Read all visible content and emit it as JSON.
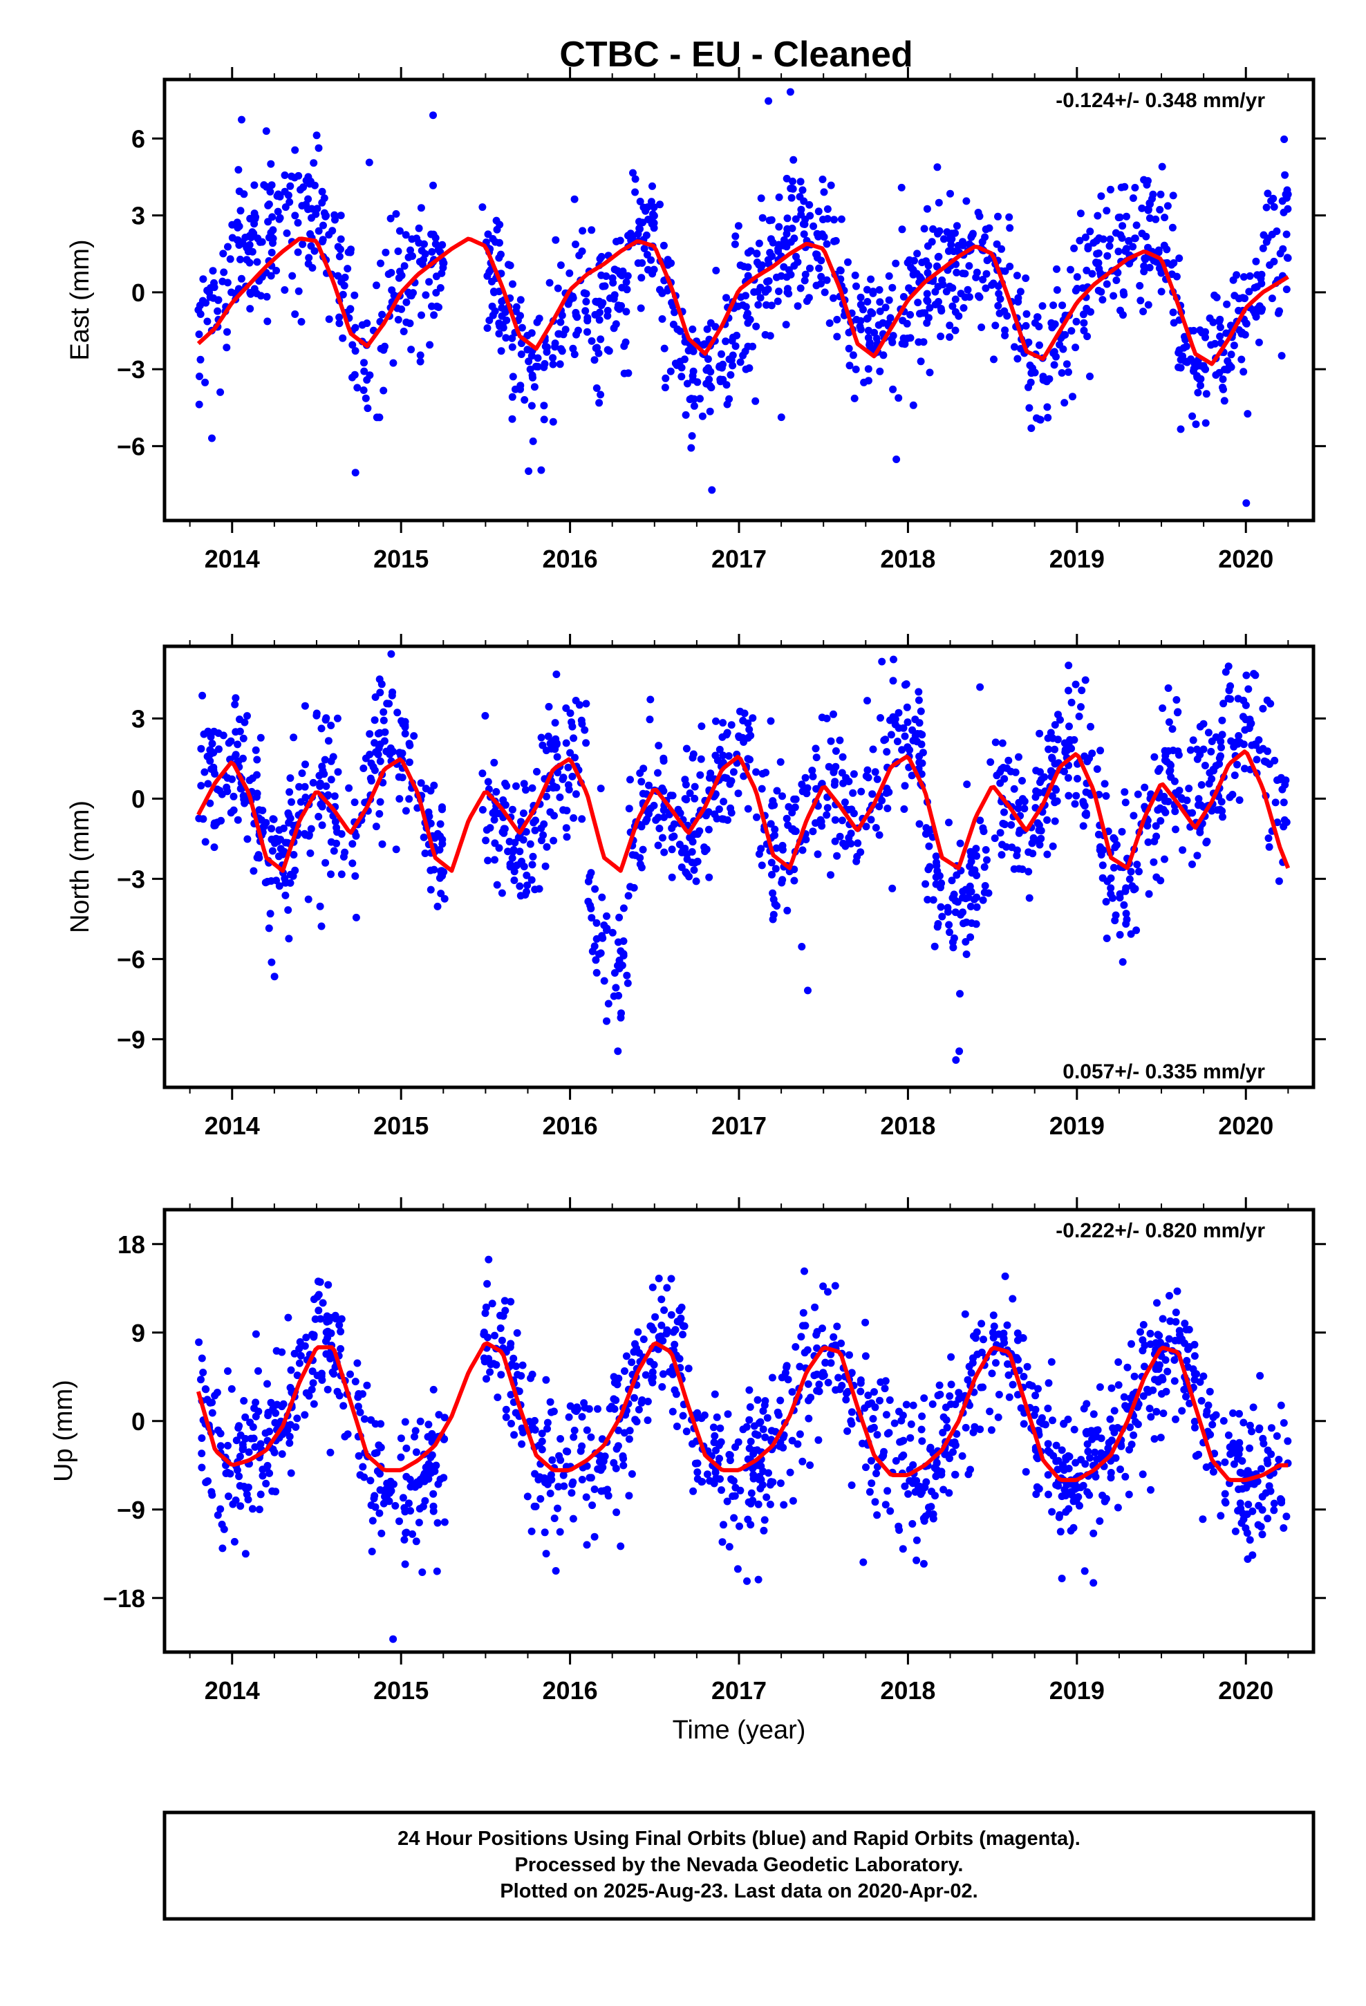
{
  "title": "CTBC  - EU - Cleaned",
  "xlabel": "Time (year)",
  "footer": {
    "line1": "24 Hour Positions Using Final Orbits (blue) and Rapid Orbits (magenta).",
    "line2": "Processed by the Nevada Geodetic Laboratory.",
    "line3": "Plotted on 2025-Aug-23. Last data on 2020-Apr-02."
  },
  "colors": {
    "points": "#0000ff",
    "model": "#ff0000",
    "frame": "#000000"
  },
  "chart_data": [
    {
      "type": "scatter",
      "component": "east",
      "ylabel": "East (mm)",
      "rate_label": "-0.124+/- 0.348 mm/yr",
      "rate_position": "top-right",
      "xlim": [
        2013.6,
        2020.4
      ],
      "ylim": [
        -8.9,
        8.3
      ],
      "x_ticks": [
        2014,
        2015,
        2016,
        2017,
        2018,
        2019,
        2020
      ],
      "y_ticks": [
        6,
        3,
        0,
        -3,
        -6
      ],
      "model_series": {
        "x": [
          2013.8,
          2013.9,
          2014.0,
          2014.1,
          2014.2,
          2014.3,
          2014.4,
          2014.5,
          2014.6,
          2014.7,
          2014.8,
          2014.9,
          2015.0,
          2015.1,
          2015.2,
          2015.3,
          2015.4,
          2015.5,
          2015.6,
          2015.7,
          2015.8,
          2015.9,
          2016.0,
          2016.1,
          2016.2,
          2016.3,
          2016.4,
          2016.5,
          2016.6,
          2016.7,
          2016.8,
          2016.9,
          2017.0,
          2017.1,
          2017.2,
          2017.3,
          2017.4,
          2017.5,
          2017.6,
          2017.7,
          2017.8,
          2017.9,
          2018.0,
          2018.1,
          2018.2,
          2018.3,
          2018.4,
          2018.5,
          2018.6,
          2018.7,
          2018.8,
          2018.9,
          2019.0,
          2019.1,
          2019.2,
          2019.3,
          2019.4,
          2019.5,
          2019.6,
          2019.7,
          2019.8,
          2019.9,
          2020.0,
          2020.1,
          2020.2,
          2020.25
        ],
        "y": [
          -2.0,
          -1.4,
          -0.4,
          0.3,
          1.0,
          1.6,
          2.1,
          2.0,
          0.4,
          -1.6,
          -2.1,
          -1.2,
          0.0,
          0.7,
          1.2,
          1.7,
          2.1,
          1.8,
          0.2,
          -1.7,
          -2.2,
          -1.1,
          0.1,
          0.7,
          1.1,
          1.6,
          2.0,
          1.8,
          0.2,
          -1.8,
          -2.4,
          -1.3,
          0.1,
          0.6,
          1.0,
          1.5,
          1.9,
          1.7,
          0.1,
          -2.0,
          -2.5,
          -1.4,
          -0.3,
          0.4,
          0.9,
          1.4,
          1.8,
          1.5,
          -0.3,
          -2.3,
          -2.6,
          -1.5,
          -0.4,
          0.3,
          0.8,
          1.3,
          1.6,
          1.3,
          -0.5,
          -2.4,
          -2.8,
          -1.8,
          -0.6,
          0.0,
          0.4,
          0.6
        ]
      },
      "points_seed": 11,
      "points_count": 1500,
      "points_noise": 1.4,
      "points_offset_segments": [
        [
          2013.8,
          2014.7,
          2.0
        ],
        [
          2014.7,
          2015.5,
          0.2
        ],
        [
          2015.5,
          2016.1,
          -0.6
        ],
        [
          2016.1,
          2016.35,
          -2.6
        ],
        [
          2016.35,
          2016.5,
          1.2
        ],
        [
          2016.5,
          2017.1,
          -1.6
        ],
        [
          2017.1,
          2017.9,
          0.8
        ],
        [
          2017.9,
          2018.7,
          -0.2
        ],
        [
          2018.7,
          2019.0,
          -1.2
        ],
        [
          2019.0,
          2019.6,
          1.2
        ],
        [
          2019.6,
          2020.1,
          -0.4
        ],
        [
          2020.1,
          2020.26,
          2.8
        ]
      ]
    },
    {
      "type": "scatter",
      "component": "north",
      "ylabel": "North (mm)",
      "rate_label": "0.057+/- 0.335 mm/yr",
      "rate_position": "bottom-right",
      "xlim": [
        2013.6,
        2020.4
      ],
      "ylim": [
        -10.8,
        5.7
      ],
      "x_ticks": [
        2014,
        2015,
        2016,
        2017,
        2018,
        2019,
        2020
      ],
      "y_ticks": [
        3,
        0,
        -3,
        -6,
        -9
      ],
      "model_series": {
        "x": [
          2013.8,
          2013.9,
          2014.0,
          2014.1,
          2014.2,
          2014.3,
          2014.4,
          2014.5,
          2014.6,
          2014.7,
          2014.8,
          2014.9,
          2015.0,
          2015.1,
          2015.2,
          2015.3,
          2015.4,
          2015.5,
          2015.6,
          2015.7,
          2015.8,
          2015.9,
          2016.0,
          2016.1,
          2016.2,
          2016.3,
          2016.4,
          2016.5,
          2016.6,
          2016.7,
          2016.8,
          2016.9,
          2017.0,
          2017.1,
          2017.2,
          2017.3,
          2017.4,
          2017.5,
          2017.6,
          2017.7,
          2017.8,
          2017.9,
          2018.0,
          2018.1,
          2018.2,
          2018.3,
          2018.4,
          2018.5,
          2018.6,
          2018.7,
          2018.8,
          2018.9,
          2019.0,
          2019.1,
          2019.2,
          2019.3,
          2019.4,
          2019.5,
          2019.6,
          2019.7,
          2019.8,
          2019.9,
          2020.0,
          2020.1,
          2020.2,
          2020.25
        ],
        "y": [
          -0.6,
          0.6,
          1.4,
          0.2,
          -2.2,
          -2.7,
          -0.8,
          0.3,
          -0.4,
          -1.3,
          -0.3,
          1.1,
          1.5,
          0.2,
          -2.2,
          -2.7,
          -0.8,
          0.3,
          -0.4,
          -1.3,
          -0.3,
          1.1,
          1.5,
          0.2,
          -2.2,
          -2.7,
          -0.8,
          0.4,
          -0.4,
          -1.3,
          -0.3,
          1.1,
          1.6,
          0.3,
          -2.1,
          -2.6,
          -0.8,
          0.5,
          -0.3,
          -1.2,
          -0.2,
          1.2,
          1.6,
          0.3,
          -2.2,
          -2.6,
          -0.7,
          0.5,
          -0.3,
          -1.2,
          -0.2,
          1.2,
          1.7,
          0.3,
          -2.2,
          -2.6,
          -0.7,
          0.6,
          -0.2,
          -1.1,
          -0.1,
          1.3,
          1.8,
          0.4,
          -1.8,
          -2.6
        ]
      },
      "points_seed": 23,
      "points_count": 1500,
      "points_noise": 1.3,
      "points_offset_segments": [
        [
          2013.8,
          2014.2,
          0.8
        ],
        [
          2014.2,
          2014.8,
          0.6
        ],
        [
          2014.8,
          2015.3,
          1.2
        ],
        [
          2015.3,
          2016.0,
          -1.0
        ],
        [
          2016.0,
          2016.1,
          0.8
        ],
        [
          2016.1,
          2016.35,
          -6.0
        ],
        [
          2016.35,
          2017.0,
          -0.6
        ],
        [
          2017.0,
          2017.8,
          0.4
        ],
        [
          2017.8,
          2018.1,
          1.4
        ],
        [
          2018.1,
          2018.5,
          -3.0
        ],
        [
          2018.5,
          2019.2,
          0.2
        ],
        [
          2019.2,
          2019.5,
          -0.6
        ],
        [
          2019.5,
          2020.0,
          1.2
        ],
        [
          2020.0,
          2020.26,
          2.6
        ]
      ]
    },
    {
      "type": "scatter",
      "component": "up",
      "ylabel": "Up (mm)",
      "rate_label": "-0.222+/- 0.820 mm/yr",
      "rate_position": "top-right",
      "xlim": [
        2013.6,
        2020.4
      ],
      "ylim": [
        -23.5,
        21.5
      ],
      "x_ticks": [
        2014,
        2015,
        2016,
        2017,
        2018,
        2019,
        2020
      ],
      "y_ticks": [
        18,
        9,
        0,
        -9,
        -18
      ],
      "model_series": {
        "x": [
          2013.8,
          2013.9,
          2014.0,
          2014.1,
          2014.2,
          2014.3,
          2014.4,
          2014.5,
          2014.6,
          2014.7,
          2014.8,
          2014.9,
          2015.0,
          2015.1,
          2015.2,
          2015.3,
          2015.4,
          2015.5,
          2015.6,
          2015.7,
          2015.8,
          2015.9,
          2016.0,
          2016.1,
          2016.2,
          2016.3,
          2016.4,
          2016.5,
          2016.6,
          2016.7,
          2016.8,
          2016.9,
          2017.0,
          2017.1,
          2017.2,
          2017.3,
          2017.4,
          2017.5,
          2017.6,
          2017.7,
          2017.8,
          2017.9,
          2018.0,
          2018.1,
          2018.2,
          2018.3,
          2018.4,
          2018.5,
          2018.6,
          2018.7,
          2018.8,
          2018.9,
          2019.0,
          2019.1,
          2019.2,
          2019.3,
          2019.4,
          2019.5,
          2019.6,
          2019.7,
          2019.8,
          2019.9,
          2020.0,
          2020.1,
          2020.2,
          2020.25
        ],
        "y": [
          3.0,
          -3.0,
          -4.5,
          -4.0,
          -3.0,
          -0.5,
          4.0,
          7.5,
          7.5,
          2.0,
          -3.5,
          -5.0,
          -5.0,
          -4.0,
          -2.5,
          0.5,
          5.0,
          8.0,
          7.0,
          1.5,
          -3.5,
          -5.0,
          -5.0,
          -4.0,
          -2.5,
          0.5,
          5.0,
          8.0,
          7.0,
          1.5,
          -3.5,
          -5.0,
          -5.0,
          -4.0,
          -2.5,
          0.5,
          5.0,
          7.5,
          7.0,
          1.5,
          -3.5,
          -5.5,
          -5.5,
          -4.5,
          -3.0,
          0.0,
          4.5,
          7.5,
          7.0,
          1.5,
          -4.0,
          -6.0,
          -6.0,
          -5.0,
          -3.5,
          0.0,
          4.5,
          7.5,
          7.0,
          1.5,
          -4.0,
          -6.0,
          -6.0,
          -5.5,
          -4.5,
          -4.5
        ]
      },
      "points_seed": 37,
      "points_count": 1500,
      "points_noise": 3.6,
      "points_offset_segments": [
        [
          2013.8,
          2014.8,
          0.6
        ],
        [
          2014.8,
          2015.3,
          -3.5
        ],
        [
          2015.3,
          2015.9,
          1.8
        ],
        [
          2015.9,
          2016.5,
          -1.6
        ],
        [
          2016.5,
          2017.0,
          0.6
        ],
        [
          2017.0,
          2017.6,
          -1.2
        ],
        [
          2017.6,
          2018.0,
          1.2
        ],
        [
          2018.0,
          2018.6,
          -1.0
        ],
        [
          2018.6,
          2019.1,
          1.0
        ],
        [
          2019.1,
          2019.6,
          -1.2
        ],
        [
          2019.6,
          2020.0,
          1.0
        ],
        [
          2020.0,
          2020.26,
          -2.0
        ]
      ]
    }
  ]
}
